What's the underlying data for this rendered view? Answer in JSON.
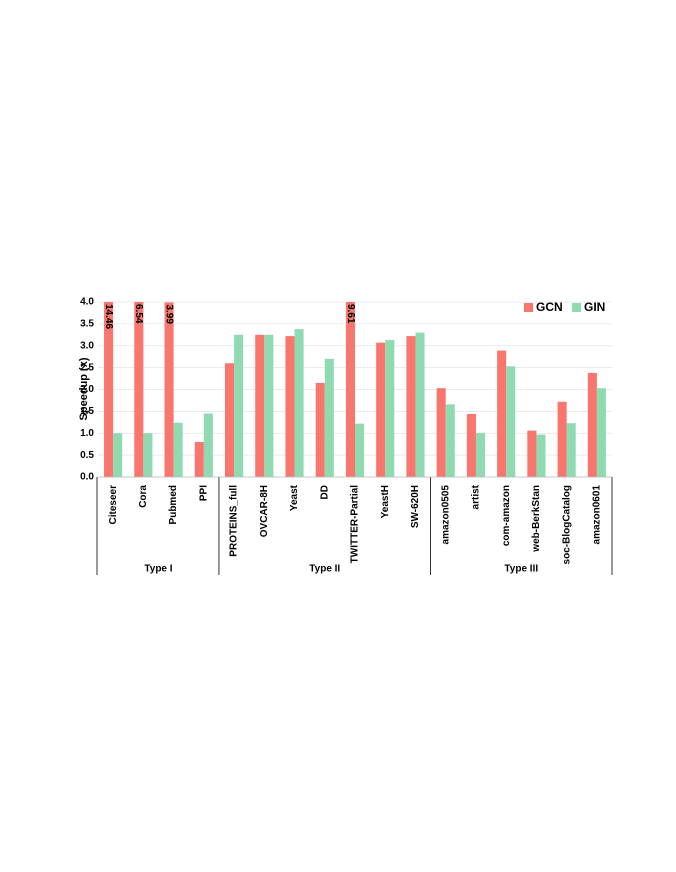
{
  "chart_data": {
    "type": "bar",
    "y_label": "Speedup (x)",
    "groups": [
      {
        "label": "Type I",
        "categories": [
          "Citeseer",
          "Cora",
          "Pubmed",
          "PPI"
        ]
      },
      {
        "label": "Type II",
        "categories": [
          "PROTEINS_full",
          "OVCAR-8H",
          "Yeast",
          "DD",
          "TWITTER-Partial",
          "YeastH",
          "SW-620H"
        ]
      },
      {
        "label": "Type III",
        "categories": [
          "amazon0505",
          "artist",
          "com-amazon",
          "web-BerkStan",
          "soc-BlogCatalog",
          "amazon0601"
        ]
      }
    ],
    "series": [
      {
        "name": "GCN",
        "color": "#f8766d",
        "values": [
          14.46,
          6.54,
          3.99,
          0.8,
          2.6,
          3.25,
          3.22,
          2.15,
          9.61,
          3.07,
          3.22,
          2.03,
          1.44,
          2.89,
          1.06,
          1.72,
          2.38
        ],
        "value_labels": [
          "14.46",
          "6.54",
          "3.99",
          null,
          null,
          null,
          null,
          null,
          "9.61",
          null,
          null,
          null,
          null,
          null,
          null,
          null,
          null
        ]
      },
      {
        "name": "GIN",
        "color": "#8fdab1",
        "values": [
          1.0,
          1.0,
          1.24,
          1.45,
          3.25,
          3.25,
          3.38,
          2.7,
          1.22,
          3.13,
          3.3,
          1.66,
          1.01,
          2.53,
          0.97,
          1.23,
          2.03
        ]
      }
    ],
    "ylim": [
      0,
      4
    ],
    "yticks": [
      {
        "value": 0,
        "label": "0.0"
      },
      {
        "value": 0.5,
        "label": "0.5"
      },
      {
        "value": 1,
        "label": "1.0"
      },
      {
        "value": 1.5,
        "label": "1.5"
      },
      {
        "value": 2,
        "label": "2.0"
      },
      {
        "value": 2.5,
        "label": "2.5"
      },
      {
        "value": 3,
        "label": "3.0"
      },
      {
        "value": 3.5,
        "label": "3.5"
      },
      {
        "value": 4,
        "label": "4.0"
      }
    ],
    "grid": true,
    "legend": "top-right"
  }
}
